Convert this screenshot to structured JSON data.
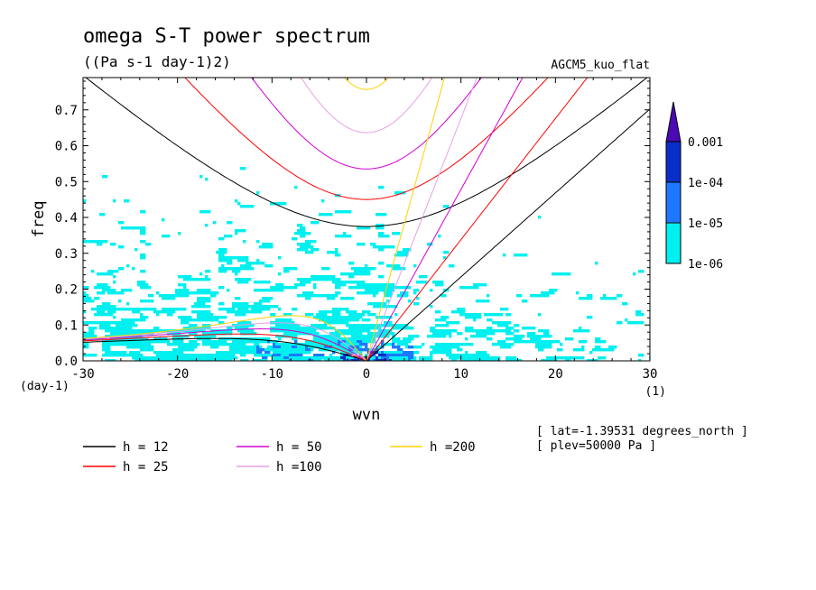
{
  "chart_data": {
    "type": "heatmap",
    "title": "omega S-T power spectrum",
    "subtitle": "((Pa s-1 day-1)2)",
    "model_label": "AGCM5_kuo_flat",
    "xlabel": "wvn",
    "ylabel": "freq",
    "x_unit": "(1)",
    "y_unit": "(day-1)",
    "xlim": [
      -30,
      30
    ],
    "ylim": [
      0,
      0.79
    ],
    "x_ticks": [
      "-30",
      "-20",
      "-10",
      "0",
      "10",
      "20",
      "30"
    ],
    "x_tick_values": [
      -30,
      -20,
      -10,
      0,
      10,
      20,
      30
    ],
    "y_ticks": [
      "0.0",
      "0.1",
      "0.2",
      "0.3",
      "0.4",
      "0.5",
      "0.6",
      "0.7"
    ],
    "y_tick_values": [
      0,
      0.1,
      0.2,
      0.3,
      0.4,
      0.5,
      0.6,
      0.7
    ],
    "colorbar": {
      "labels": [
        "0.001",
        "1e-04",
        "1e-05",
        "1e-06"
      ],
      "colors": [
        "#4b0ab4",
        "#0a2ec8",
        "#1e78ff",
        "#00f0f0"
      ]
    },
    "dispersion_curves": [
      {
        "name": "h = 12",
        "h": 12,
        "color": "#000000"
      },
      {
        "name": "h = 25",
        "h": 25,
        "color": "#ff0000"
      },
      {
        "name": "h = 50",
        "h": 50,
        "color": "#d200d2"
      },
      {
        "name": "h =100",
        "h": 100,
        "color": "#e6a0e6"
      },
      {
        "name": "h =200",
        "h": 200,
        "color": "#ffd200"
      }
    ],
    "info": [
      "[ lat=-1.39531 degrees_north ]",
      "[ plev=50000 Pa ]"
    ]
  }
}
